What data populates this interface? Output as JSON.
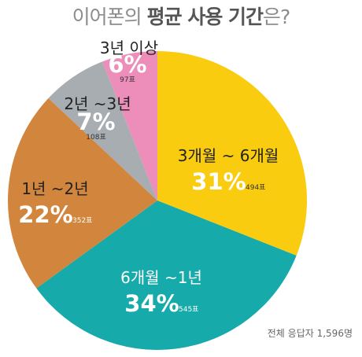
{
  "title": {
    "prefix": "이어폰의 ",
    "emphasis": "평균 사용 기간",
    "suffix": "은?"
  },
  "footer": "전체 응답자 1,596명",
  "chart_data": {
    "type": "pie",
    "title": "이어폰의 평균 사용 기간은?",
    "slices": [
      {
        "label": "3개월 ~ 6개월",
        "percent": 31,
        "percent_label": "31%",
        "count_label": "494표",
        "color": "#f9cc10"
      },
      {
        "label": "6개월 ~1년",
        "percent": 34,
        "percent_label": "34%",
        "count_label": "545표",
        "color": "#16aaab"
      },
      {
        "label": "1년 ~2년",
        "percent": 22,
        "percent_label": "22%",
        "count_label": "352표",
        "color": "#d2853d"
      },
      {
        "label": "2년 ~3년",
        "percent": 7,
        "percent_label": "7%",
        "count_label": "108표",
        "color": "#a7adb0"
      },
      {
        "label": "3년 이상",
        "percent": 6,
        "percent_label": "6%",
        "count_label": "97표",
        "color": "#ec8dba"
      }
    ],
    "start": "12 o'clock",
    "direction": "clockwise",
    "legend": "none"
  }
}
